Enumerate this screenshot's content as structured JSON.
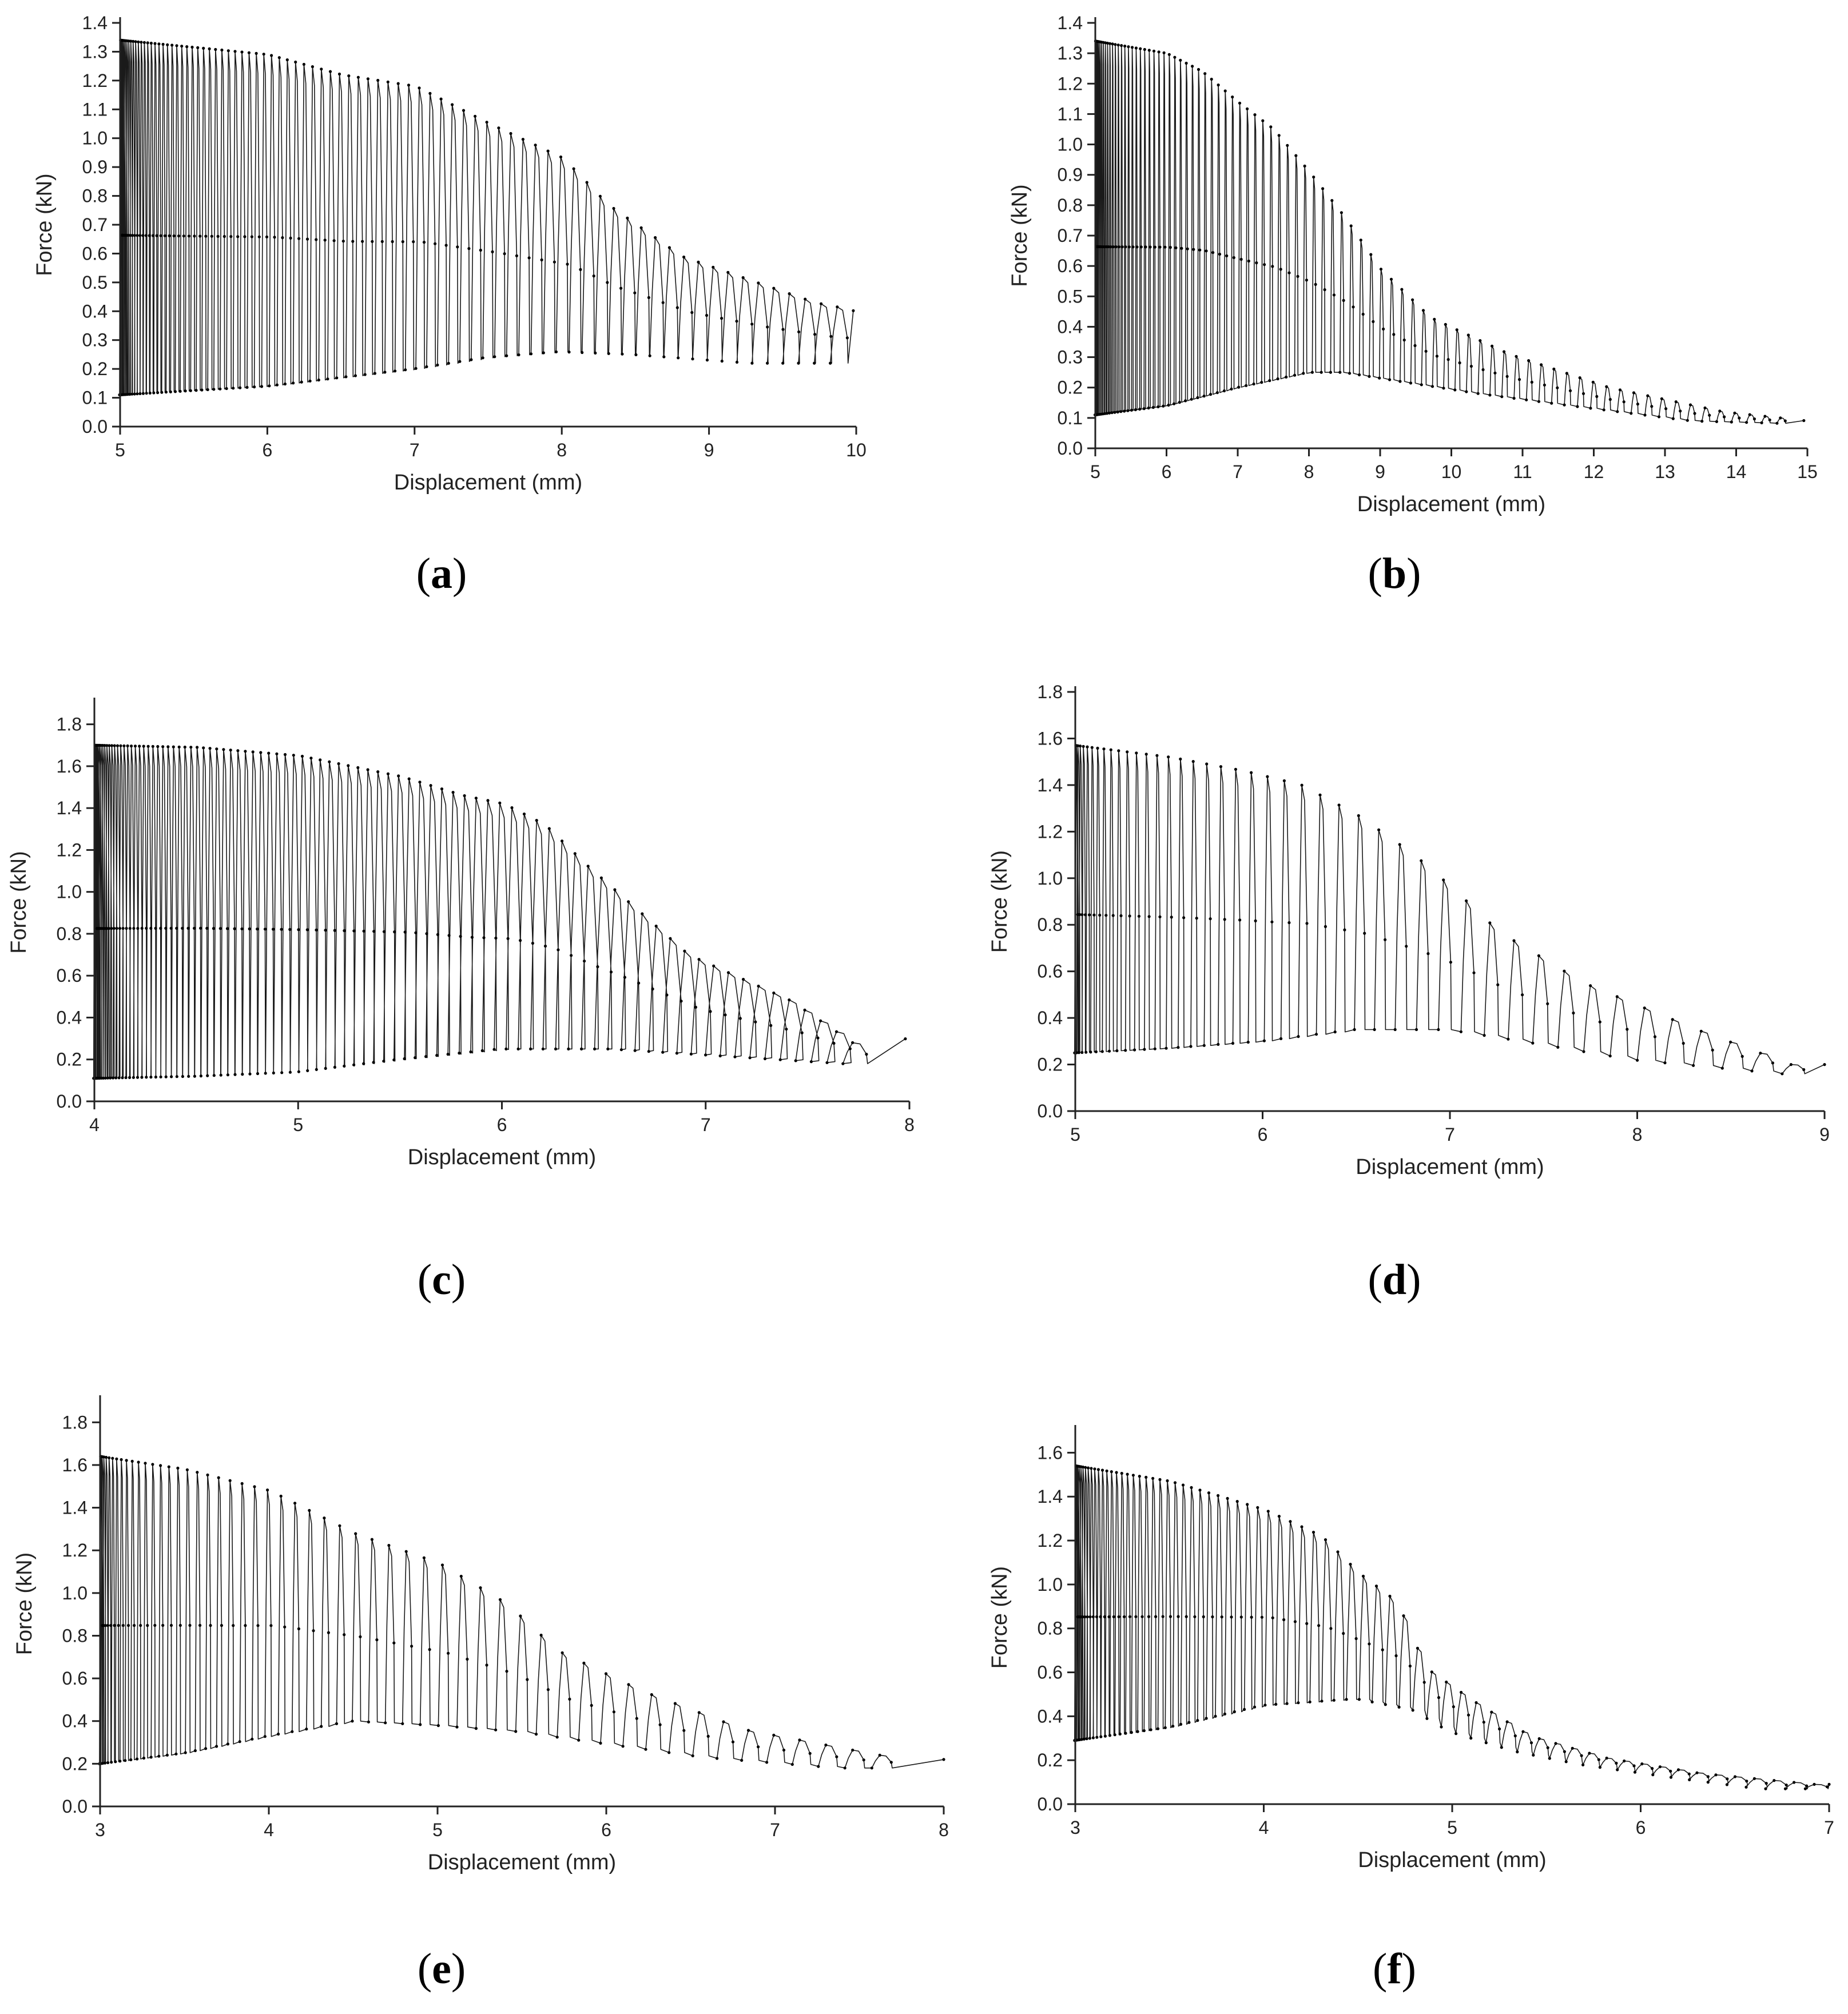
{
  "colors": {
    "line": "#1a1a1a",
    "axis": "#222222",
    "marker": "#000000",
    "background": "#ffffff"
  },
  "chart_data": [
    {
      "id": "a",
      "caption": "a",
      "type": "line",
      "xlabel": "Displacement (mm)",
      "ylabel": "Force (kN)",
      "xlim": [
        5,
        10
      ],
      "ylim": [
        0,
        1.4
      ],
      "xticks": [
        5,
        6,
        7,
        8,
        9,
        10
      ],
      "yticks": [
        0.0,
        0.1,
        0.2,
        0.3,
        0.4,
        0.5,
        0.6,
        0.7,
        0.8,
        0.9,
        1.0,
        1.1,
        1.2,
        1.3,
        1.4
      ],
      "ytick_labels": [
        "0.0",
        "0.1",
        "0.2",
        "0.3",
        "0.4",
        "0.5",
        "0.6",
        "0.7",
        "0.8",
        "0.9",
        "1.0",
        "1.1",
        "1.2",
        "1.3",
        "1.4"
      ],
      "curve": {
        "cycles": 85,
        "x_start": 5.0,
        "x_end_last_peak": 9.85,
        "x_final": 9.98,
        "envelope_top": [
          [
            5.0,
            1.34
          ],
          [
            6.0,
            1.29
          ],
          [
            6.5,
            1.22
          ],
          [
            7.0,
            1.18
          ],
          [
            7.5,
            1.05
          ],
          [
            8.0,
            0.93
          ],
          [
            8.3,
            0.77
          ],
          [
            8.8,
            0.59
          ],
          [
            9.7,
            0.43
          ],
          [
            10.0,
            0.4
          ]
        ],
        "envelope_bottom": [
          [
            5.0,
            0.11
          ],
          [
            6.0,
            0.14
          ],
          [
            7.0,
            0.2
          ],
          [
            7.5,
            0.24
          ],
          [
            8.0,
            0.26
          ],
          [
            8.5,
            0.25
          ],
          [
            9.3,
            0.22
          ]
        ]
      }
    },
    {
      "id": "b",
      "caption": "b",
      "type": "line",
      "xlabel": "Displacement (mm)",
      "ylabel": "Force (kN)",
      "xlim": [
        5,
        15
      ],
      "ylim": [
        0,
        1.4
      ],
      "xticks": [
        5,
        6,
        7,
        8,
        9,
        10,
        11,
        12,
        13,
        14,
        15
      ],
      "yticks": [
        0.0,
        0.1,
        0.2,
        0.3,
        0.4,
        0.5,
        0.6,
        0.7,
        0.8,
        0.9,
        1.0,
        1.1,
        1.2,
        1.3,
        1.4
      ],
      "ytick_labels": [
        "0.0",
        "0.1",
        "0.2",
        "0.3",
        "0.4",
        "0.5",
        "0.6",
        "0.7",
        "0.8",
        "0.9",
        "1.0",
        "1.1",
        "1.2",
        "1.3",
        "1.4"
      ],
      "curve": {
        "cycles": 85,
        "x_start": 5.0,
        "x_end_last_peak": 14.6,
        "x_final": 14.95,
        "envelope_top": [
          [
            5.0,
            1.34
          ],
          [
            6.0,
            1.3
          ],
          [
            6.5,
            1.24
          ],
          [
            7.0,
            1.14
          ],
          [
            7.5,
            1.05
          ],
          [
            8.0,
            0.91
          ],
          [
            8.5,
            0.76
          ],
          [
            9.0,
            0.59
          ],
          [
            9.7,
            0.43
          ],
          [
            10.8,
            0.31
          ],
          [
            12.2,
            0.2
          ],
          [
            13.8,
            0.12
          ],
          [
            15.0,
            0.09
          ]
        ],
        "envelope_bottom": [
          [
            5.0,
            0.11
          ],
          [
            6.0,
            0.14
          ],
          [
            7.0,
            0.2
          ],
          [
            8.0,
            0.25
          ],
          [
            8.5,
            0.25
          ],
          [
            9.3,
            0.22
          ],
          [
            10.4,
            0.18
          ],
          [
            11.7,
            0.14
          ],
          [
            13.4,
            0.09
          ],
          [
            15.0,
            0.08
          ]
        ]
      }
    },
    {
      "id": "c",
      "caption": "c",
      "type": "line",
      "xlabel": "Displacement (mm)",
      "ylabel": "Force (kN)",
      "xlim": [
        4,
        8
      ],
      "ylim": [
        0,
        1.9
      ],
      "xticks": [
        4,
        5,
        6,
        7,
        8
      ],
      "yticks": [
        0.0,
        0.2,
        0.4,
        0.6,
        0.8,
        1.0,
        1.2,
        1.4,
        1.6,
        1.8
      ],
      "ytick_labels": [
        "0.0",
        "0.2",
        "0.4",
        "0.6",
        "0.8",
        "1.0",
        "1.2",
        "1.4",
        "1.6",
        "1.8"
      ],
      "curve": {
        "cycles": 90,
        "x_start": 4.0,
        "x_end_last_peak": 7.7,
        "x_final": 7.98,
        "envelope_top": [
          [
            4.0,
            1.7
          ],
          [
            4.5,
            1.69
          ],
          [
            5.0,
            1.65
          ],
          [
            5.5,
            1.55
          ],
          [
            5.8,
            1.46
          ],
          [
            6.0,
            1.42
          ],
          [
            6.2,
            1.32
          ],
          [
            6.4,
            1.13
          ],
          [
            6.9,
            0.7
          ],
          [
            7.4,
            0.48
          ],
          [
            7.7,
            0.28
          ],
          [
            8.0,
            0.3
          ]
        ],
        "envelope_bottom": [
          [
            4.0,
            0.11
          ],
          [
            4.5,
            0.12
          ],
          [
            5.0,
            0.14
          ],
          [
            5.5,
            0.2
          ],
          [
            5.8,
            0.23
          ],
          [
            6.0,
            0.25
          ],
          [
            6.55,
            0.25
          ],
          [
            7.7,
            0.18
          ]
        ]
      }
    },
    {
      "id": "d",
      "caption": "d",
      "type": "line",
      "xlabel": "Displacement (mm)",
      "ylabel": "Force (kN)",
      "xlim": [
        5,
        9
      ],
      "ylim": [
        0,
        1.8
      ],
      "xticks": [
        5,
        6,
        7,
        8,
        9
      ],
      "yticks": [
        0.0,
        0.2,
        0.4,
        0.6,
        0.8,
        1.0,
        1.2,
        1.4,
        1.6,
        1.8
      ],
      "ytick_labels": [
        "0.0",
        "0.2",
        "0.4",
        "0.6",
        "0.8",
        "1.0",
        "1.2",
        "1.4",
        "1.6",
        "1.8"
      ],
      "curve": {
        "cycles": 45,
        "x_start": 5.0,
        "x_end_last_peak": 8.8,
        "x_final": 9.0,
        "envelope_top": [
          [
            5.0,
            1.57
          ],
          [
            5.5,
            1.52
          ],
          [
            5.9,
            1.46
          ],
          [
            6.2,
            1.4
          ],
          [
            6.5,
            1.27
          ],
          [
            6.8,
            1.1
          ],
          [
            7.0,
            0.96
          ],
          [
            7.25,
            0.77
          ],
          [
            7.7,
            0.55
          ],
          [
            8.3,
            0.35
          ],
          [
            8.8,
            0.2
          ],
          [
            9.0,
            0.2
          ]
        ],
        "envelope_bottom": [
          [
            5.0,
            0.25
          ],
          [
            5.5,
            0.27
          ],
          [
            6.0,
            0.3
          ],
          [
            6.5,
            0.35
          ],
          [
            7.0,
            0.35
          ],
          [
            7.4,
            0.3
          ],
          [
            8.0,
            0.22
          ],
          [
            8.8,
            0.16
          ]
        ]
      }
    },
    {
      "id": "e",
      "caption": "e",
      "type": "line",
      "xlabel": "Displacement (mm)",
      "ylabel": "Force (kN)",
      "xlim": [
        3,
        8
      ],
      "ylim": [
        0,
        1.9
      ],
      "xticks": [
        3,
        4,
        5,
        6,
        7,
        8
      ],
      "yticks": [
        0.0,
        0.2,
        0.4,
        0.6,
        0.8,
        1.0,
        1.2,
        1.4,
        1.6,
        1.8
      ],
      "ytick_labels": [
        "0.0",
        "0.2",
        "0.4",
        "0.6",
        "0.8",
        "1.0",
        "1.2",
        "1.4",
        "1.6",
        "1.8"
      ],
      "curve": {
        "cycles": 55,
        "x_start": 3.0,
        "x_end_last_peak": 7.6,
        "x_final": 8.0,
        "envelope_top": [
          [
            3.0,
            1.64
          ],
          [
            3.5,
            1.58
          ],
          [
            4.0,
            1.48
          ],
          [
            4.5,
            1.28
          ],
          [
            5.0,
            1.14
          ],
          [
            5.4,
            0.95
          ],
          [
            5.7,
            0.73
          ],
          [
            6.2,
            0.54
          ],
          [
            6.8,
            0.36
          ],
          [
            7.6,
            0.24
          ],
          [
            8.0,
            0.22
          ]
        ],
        "envelope_bottom": [
          [
            3.0,
            0.2
          ],
          [
            3.5,
            0.25
          ],
          [
            4.0,
            0.33
          ],
          [
            4.5,
            0.4
          ],
          [
            5.0,
            0.38
          ],
          [
            5.5,
            0.35
          ],
          [
            5.95,
            0.3
          ],
          [
            6.6,
            0.23
          ],
          [
            7.4,
            0.18
          ]
        ]
      }
    },
    {
      "id": "f",
      "caption": "f",
      "type": "line",
      "xlabel": "Displacement (mm)",
      "ylabel": "Force (kN)",
      "xlim": [
        3,
        7
      ],
      "ylim": [
        0,
        1.7
      ],
      "xticks": [
        3,
        4,
        5,
        6,
        7
      ],
      "yticks": [
        0.0,
        0.2,
        0.4,
        0.6,
        0.8,
        1.0,
        1.2,
        1.4,
        1.6
      ],
      "ytick_labels": [
        "0.0",
        "0.2",
        "0.4",
        "0.6",
        "0.8",
        "1.0",
        "1.2",
        "1.4",
        "1.6"
      ],
      "curve": {
        "cycles": 70,
        "x_start": 3.0,
        "x_end_last_peak": 6.9,
        "x_final": 7.0,
        "envelope_top": [
          [
            3.0,
            1.54
          ],
          [
            3.5,
            1.47
          ],
          [
            4.0,
            1.34
          ],
          [
            4.3,
            1.22
          ],
          [
            4.5,
            1.05
          ],
          [
            4.7,
            0.92
          ],
          [
            4.85,
            0.62
          ],
          [
            5.1,
            0.47
          ],
          [
            5.4,
            0.31
          ],
          [
            5.8,
            0.21
          ],
          [
            6.3,
            0.14
          ],
          [
            6.9,
            0.09
          ],
          [
            7.0,
            0.09
          ]
        ],
        "envelope_bottom": [
          [
            3.0,
            0.29
          ],
          [
            3.5,
            0.35
          ],
          [
            4.0,
            0.45
          ],
          [
            4.5,
            0.48
          ],
          [
            4.8,
            0.43
          ],
          [
            5.0,
            0.33
          ],
          [
            5.35,
            0.24
          ],
          [
            5.7,
            0.18
          ],
          [
            6.2,
            0.12
          ],
          [
            6.65,
            0.07
          ]
        ]
      }
    }
  ]
}
